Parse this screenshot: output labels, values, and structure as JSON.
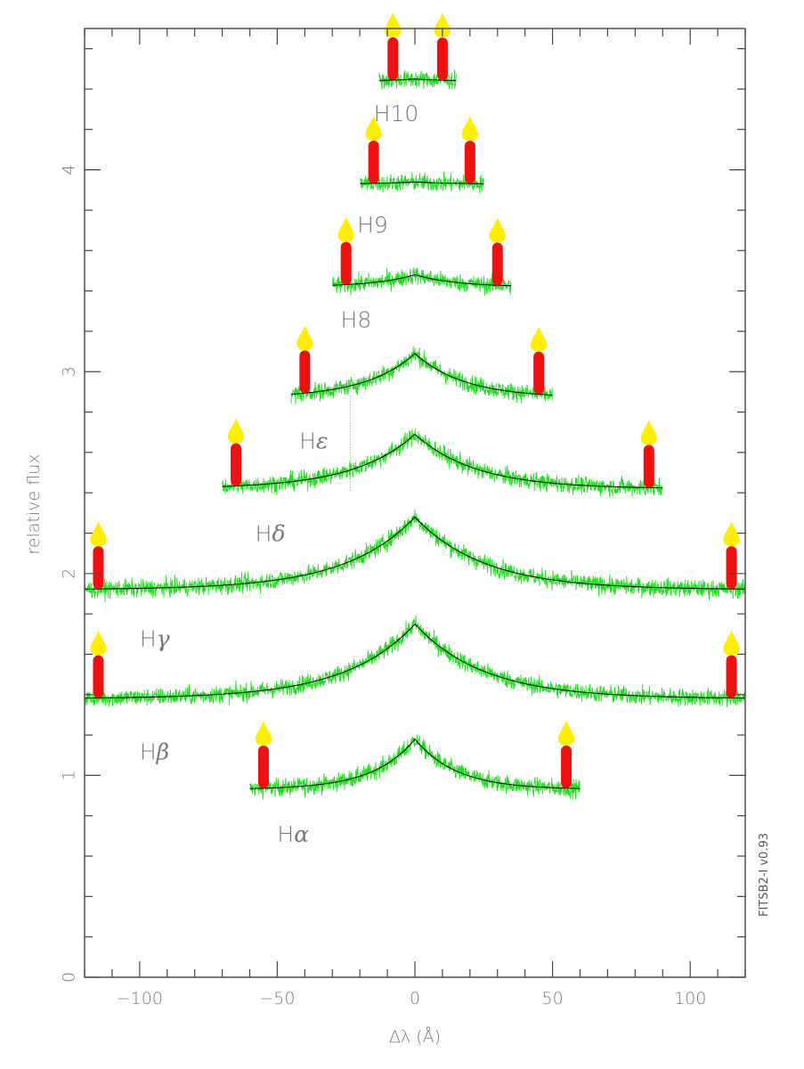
{
  "chart_data": {
    "type": "line",
    "title": "",
    "xlabel": "Δλ (Å)",
    "ylabel": "relative flux",
    "xlim": [
      -120,
      120
    ],
    "ylim": [
      0,
      4.7
    ],
    "x_ticks": [
      -100,
      -50,
      0,
      50,
      100
    ],
    "x_tick_labels": [
      "−100",
      "−50",
      "0",
      "50",
      "100"
    ],
    "y_ticks": [
      0,
      1,
      2,
      3,
      4
    ],
    "y_tick_labels": [
      "0",
      "1",
      "2",
      "3",
      "4"
    ],
    "grid": false,
    "version_label": "FITSB2-I v0.93",
    "colors": {
      "observed": "#22dd22",
      "model": "#000000",
      "axes": "#444444",
      "text": "#777777",
      "candle_body": "#ee1111",
      "candle_flame": "#ffee00"
    },
    "series": [
      {
        "name": "Hα",
        "label_main": "H",
        "label_sub": "α",
        "x_range": [
          -60,
          60
        ],
        "continuum": 0.93,
        "peak": 1.18,
        "width": 15,
        "candles_x": [
          -55,
          55
        ]
      },
      {
        "name": "Hβ",
        "label_main": "H",
        "label_sub": "β",
        "x_range": [
          -120,
          120
        ],
        "continuum": 1.38,
        "peak": 1.75,
        "width": 25,
        "candles_x": [
          -115,
          115
        ]
      },
      {
        "name": "Hγ",
        "label_main": "H",
        "label_sub": "γ",
        "x_range": [
          -120,
          120
        ],
        "continuum": 1.92,
        "peak": 2.28,
        "width": 25,
        "candles_x": [
          -115,
          115
        ]
      },
      {
        "name": "Hδ",
        "label_main": "H",
        "label_sub": "δ",
        "x_range": [
          -70,
          90
        ],
        "continuum": 2.42,
        "peak": 2.69,
        "width": 22,
        "candles_x": [
          -65,
          85
        ]
      },
      {
        "name": "Hε",
        "label_main": "H",
        "label_sub": "ε",
        "x_range": [
          -45,
          50
        ],
        "continuum": 2.87,
        "peak": 3.09,
        "width": 18,
        "candles_x": [
          -40,
          45
        ]
      },
      {
        "name": "H8",
        "label_main": "H8",
        "label_sub": "",
        "x_range": [
          -30,
          35
        ],
        "continuum": 3.42,
        "peak": 3.48,
        "width": 15,
        "candles_x": [
          -25,
          30
        ]
      },
      {
        "name": "H9",
        "label_main": "H9",
        "label_sub": "",
        "x_range": [
          -20,
          25
        ],
        "continuum": 3.93,
        "peak": 3.94,
        "width": 12,
        "candles_x": [
          -15,
          20
        ]
      },
      {
        "name": "H10",
        "label_main": "H10",
        "label_sub": "",
        "x_range": [
          -13,
          15
        ],
        "continuum": 4.44,
        "peak": 4.45,
        "width": 10,
        "candles_x": [
          -8,
          10
        ]
      }
    ],
    "label_offsets": [
      {
        "dx": -50,
        "dy": -0.26
      },
      {
        "dx": -100,
        "dy": -0.3
      },
      {
        "dx": -100,
        "dy": -0.28
      },
      {
        "dx": -58,
        "dy": -0.26
      },
      {
        "dx": -42,
        "dy": -0.25
      },
      {
        "dx": -27,
        "dy": -0.2
      },
      {
        "dx": -21,
        "dy": -0.24
      },
      {
        "dx": -15,
        "dy": -0.2
      }
    ]
  }
}
